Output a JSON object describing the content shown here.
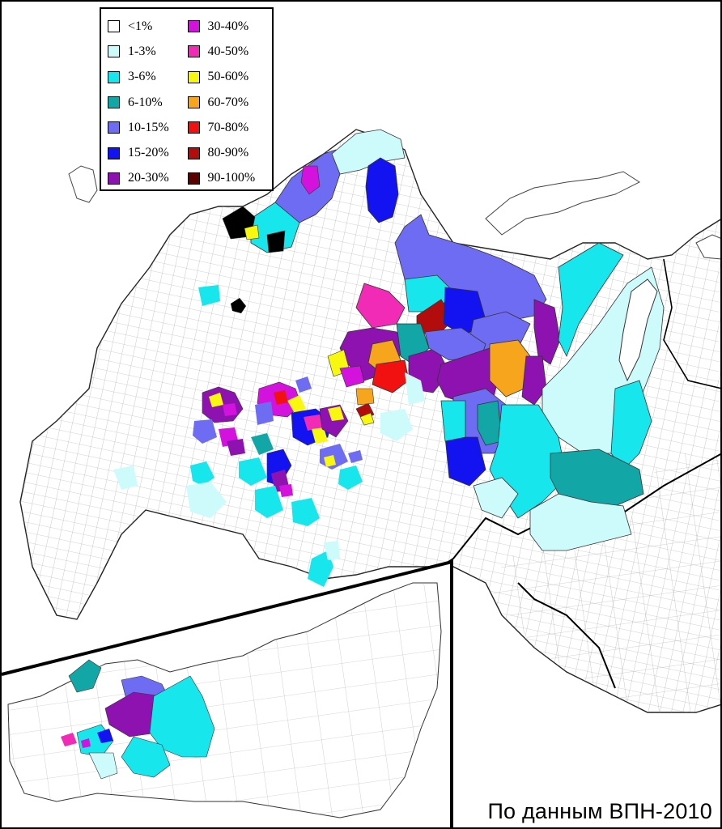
{
  "legend": {
    "items": [
      {
        "label": "<1%",
        "color": "#ffffff"
      },
      {
        "label": "1-3%",
        "color": "#cdfbfb"
      },
      {
        "label": "3-6%",
        "color": "#17e7ec"
      },
      {
        "label": "6-10%",
        "color": "#12a6a6"
      },
      {
        "label": "10-15%",
        "color": "#6e6cf2"
      },
      {
        "label": "15-20%",
        "color": "#1313f2"
      },
      {
        "label": "20-30%",
        "color": "#8e12b0"
      },
      {
        "label": "30-40%",
        "color": "#d312de"
      },
      {
        "label": "40-50%",
        "color": "#f22bb6"
      },
      {
        "label": "50-60%",
        "color": "#f7f710"
      },
      {
        "label": "60-70%",
        "color": "#f6a51c"
      },
      {
        "label": "70-80%",
        "color": "#f21111"
      },
      {
        "label": "80-90%",
        "color": "#b30c0c"
      },
      {
        "label": "90-100%",
        "color": "#5a0000"
      }
    ]
  },
  "caption": "По данным ВПН-2010",
  "map_colors": {
    "background": "#ffffff",
    "border": "#222222",
    "region_line": "#555555"
  }
}
